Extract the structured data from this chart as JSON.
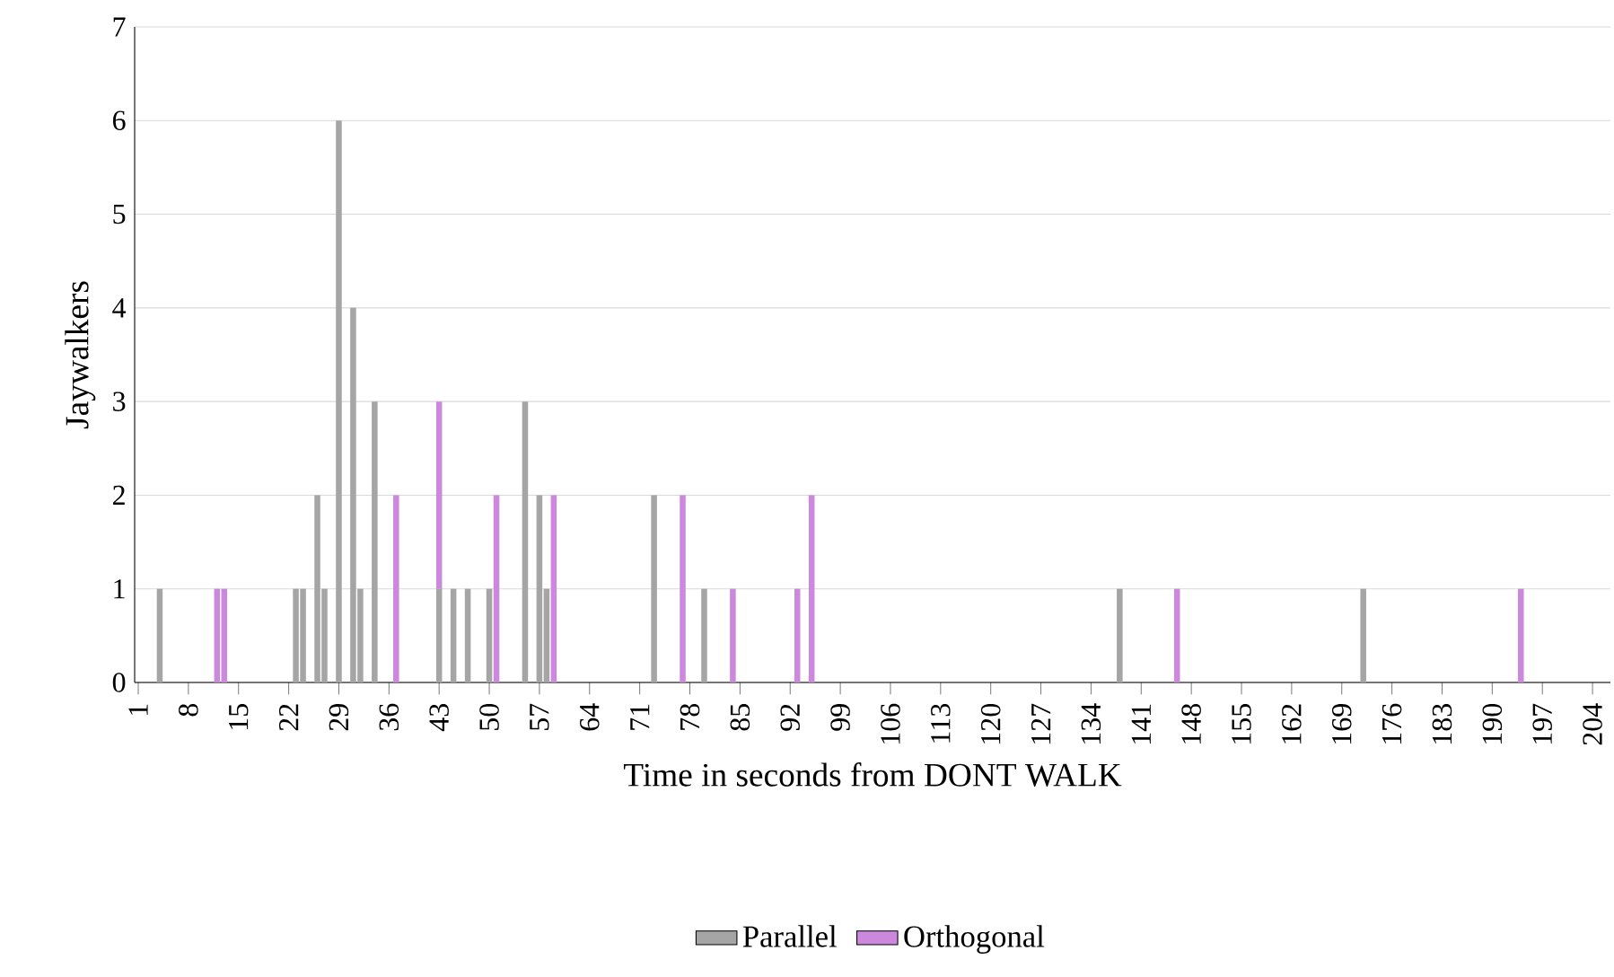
{
  "chart_data": {
    "type": "bar",
    "stacked": true,
    "xlabel": "Time in seconds from DONT WALK",
    "ylabel": "Jaywalkers",
    "categories": [
      "1",
      null,
      null,
      null,
      null,
      null,
      null,
      "8",
      null,
      null,
      null,
      null,
      null,
      null,
      "15",
      null,
      null,
      null,
      null,
      null,
      null,
      "22",
      null,
      null,
      null,
      null,
      null,
      null,
      "29",
      null,
      null,
      null,
      null,
      null,
      null,
      "36",
      null,
      null,
      null,
      null,
      null,
      null,
      "43",
      null,
      null,
      null,
      null,
      null,
      null,
      "50",
      null,
      null,
      null,
      null,
      null,
      null,
      "57",
      null,
      null,
      null,
      null,
      null,
      null,
      "64",
      null,
      null,
      null,
      null,
      null,
      null,
      "71",
      null,
      null,
      null,
      null,
      null,
      null,
      "78",
      null,
      null,
      null,
      null,
      null,
      null,
      "85",
      null,
      null,
      null,
      null,
      null,
      null,
      "92",
      null,
      null,
      null,
      null,
      null,
      null,
      "99",
      null,
      null,
      null,
      null,
      null,
      null,
      "106",
      null,
      null,
      null,
      null,
      null,
      null,
      "113",
      null,
      null,
      null,
      null,
      null,
      null,
      "120",
      null,
      null,
      null,
      null,
      null,
      null,
      "127",
      null,
      null,
      null,
      null,
      null,
      null,
      "134",
      null,
      null,
      null,
      null,
      null,
      null,
      "141",
      null,
      null,
      null,
      null,
      null,
      null,
      "148",
      null,
      null,
      null,
      null,
      null,
      null,
      "155",
      null,
      null,
      null,
      null,
      null,
      null,
      "162",
      null,
      null,
      null,
      null,
      null,
      null,
      "169",
      null,
      null,
      null,
      null,
      null,
      null,
      "176",
      null,
      null,
      null,
      null,
      null,
      null,
      "183",
      null,
      null,
      null,
      null,
      null,
      null,
      "190",
      null,
      null,
      null,
      null,
      null,
      null,
      "197",
      null,
      null,
      null,
      null,
      null,
      null,
      "204",
      null,
      null
    ],
    "series": [
      {
        "name": "Parallel",
        "color": "#a5a5a5",
        "values": [
          0,
          0,
          0,
          1,
          0,
          0,
          0,
          0,
          0,
          0,
          0,
          0,
          0,
          0,
          0,
          0,
          0,
          0,
          0,
          0,
          0,
          0,
          1,
          1,
          0,
          2,
          1,
          0,
          6,
          0,
          4,
          1,
          0,
          3,
          0,
          0,
          0,
          0,
          0,
          0,
          0,
          0,
          1,
          0,
          1,
          0,
          1,
          0,
          0,
          1,
          0,
          0,
          0,
          0,
          3,
          0,
          2,
          1,
          0,
          0,
          0,
          0,
          0,
          0,
          0,
          0,
          0,
          0,
          0,
          0,
          0,
          0,
          2,
          0,
          0,
          0,
          0,
          0,
          0,
          1,
          0,
          0,
          0,
          0,
          0,
          0,
          0,
          0,
          0,
          0,
          0,
          0,
          0,
          0,
          0,
          0,
          0,
          0,
          0,
          0,
          0,
          0,
          0,
          0,
          0,
          0,
          0,
          0,
          0,
          0,
          0,
          0,
          0,
          0,
          0,
          0,
          0,
          0,
          0,
          0,
          0,
          0,
          0,
          0,
          0,
          0,
          0,
          0,
          0,
          0,
          0,
          0,
          0,
          0,
          0,
          0,
          0,
          1,
          0,
          0,
          0,
          0,
          0,
          0,
          0,
          0,
          0,
          0,
          0,
          0,
          0,
          0,
          0,
          0,
          0,
          0,
          0,
          0,
          0,
          0,
          0,
          0,
          0,
          0,
          0,
          0,
          0,
          0,
          0,
          0,
          0,
          1,
          0,
          0,
          0,
          0,
          0,
          0,
          0,
          0,
          0,
          0,
          0,
          0,
          0,
          0,
          0,
          0,
          0,
          0,
          0,
          0,
          0,
          0,
          0,
          0,
          0,
          0,
          0,
          0,
          0,
          0,
          0,
          0,
          0,
          0
        ]
      },
      {
        "name": "Orthogonal",
        "color": "#cc88dd",
        "values": [
          0,
          0,
          0,
          0,
          0,
          0,
          0,
          0,
          0,
          0,
          0,
          1,
          1,
          0,
          0,
          0,
          0,
          0,
          0,
          0,
          0,
          0,
          0,
          0,
          0,
          0,
          0,
          0,
          0,
          0,
          0,
          0,
          0,
          0,
          0,
          0,
          2,
          0,
          0,
          0,
          0,
          0,
          2,
          0,
          0,
          0,
          0,
          0,
          0,
          0,
          2,
          0,
          0,
          0,
          0,
          0,
          0,
          0,
          2,
          0,
          0,
          0,
          0,
          0,
          0,
          0,
          0,
          0,
          0,
          0,
          0,
          0,
          0,
          0,
          0,
          0,
          2,
          0,
          0,
          0,
          0,
          0,
          0,
          1,
          0,
          0,
          0,
          0,
          0,
          0,
          0,
          0,
          1,
          0,
          2,
          0,
          0,
          0,
          0,
          0,
          0,
          0,
          0,
          0,
          0,
          0,
          0,
          0,
          0,
          0,
          0,
          0,
          0,
          0,
          0,
          0,
          0,
          0,
          0,
          0,
          0,
          0,
          0,
          0,
          0,
          0,
          0,
          0,
          0,
          0,
          0,
          0,
          0,
          0,
          0,
          0,
          0,
          0,
          0,
          0,
          0,
          0,
          0,
          0,
          0,
          1,
          0,
          0,
          0,
          0,
          0,
          0,
          0,
          0,
          0,
          0,
          0,
          0,
          0,
          0,
          0,
          0,
          0,
          0,
          0,
          0,
          0,
          0,
          0,
          0,
          0,
          0,
          0,
          0,
          0,
          0,
          0,
          0,
          0,
          0,
          0,
          0,
          0,
          0,
          0,
          0,
          0,
          0,
          0,
          0,
          0,
          0,
          0,
          1,
          0,
          0,
          0,
          0,
          0,
          0,
          0,
          0,
          0,
          0,
          0,
          0
        ]
      }
    ],
    "ylim": [
      0,
      7
    ],
    "yticks": [
      0,
      1,
      2,
      3,
      4,
      5,
      6,
      7
    ],
    "grid": "y",
    "legend": "bottom"
  }
}
